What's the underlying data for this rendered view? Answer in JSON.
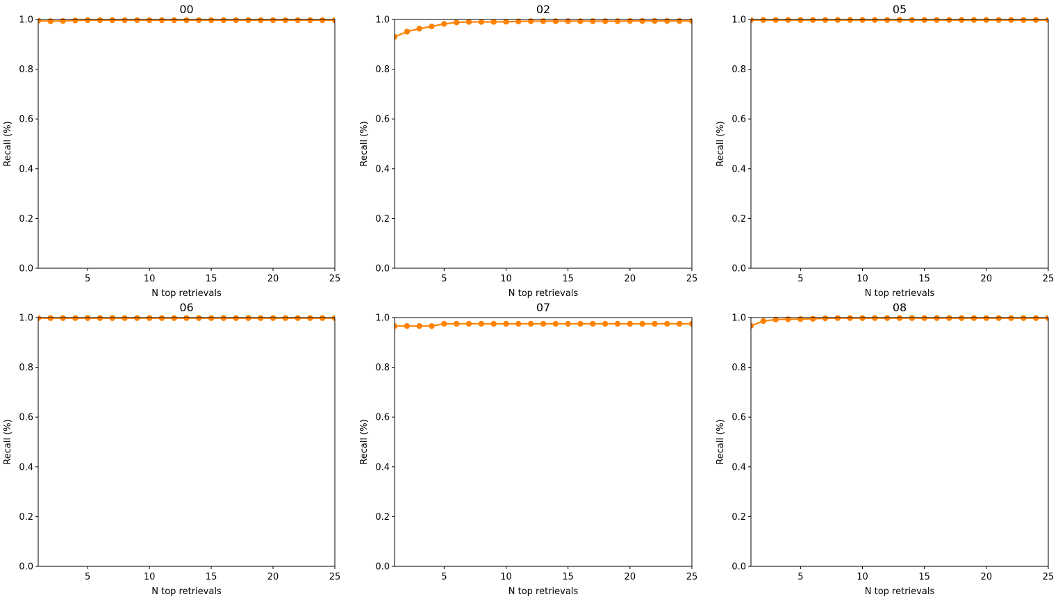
{
  "chart_data": [
    {
      "type": "line",
      "title": "00",
      "xlabel": "N top retrievals",
      "ylabel": "Recall (%)",
      "xlim": [
        1,
        25
      ],
      "ylim": [
        0.0,
        1.0
      ],
      "xticks": [
        5,
        10,
        15,
        20,
        25
      ],
      "yticks": [
        0.0,
        0.2,
        0.4,
        0.6,
        0.8,
        1.0
      ],
      "grid": false,
      "color": "#ff8200",
      "x": [
        1,
        2,
        3,
        4,
        5,
        6,
        7,
        8,
        9,
        10,
        11,
        12,
        13,
        14,
        15,
        16,
        17,
        18,
        19,
        20,
        21,
        22,
        23,
        24,
        25
      ],
      "y": [
        0.995,
        0.993,
        0.994,
        0.996,
        0.997,
        0.997,
        0.997,
        0.997,
        0.997,
        0.997,
        0.997,
        0.997,
        0.997,
        0.997,
        0.997,
        0.997,
        0.997,
        0.997,
        0.997,
        0.997,
        0.997,
        0.997,
        0.997,
        0.997,
        0.997
      ]
    },
    {
      "type": "line",
      "title": "02",
      "xlabel": "N top retrievals",
      "ylabel": "Recall (%)",
      "xlim": [
        1,
        25
      ],
      "ylim": [
        0.0,
        1.0
      ],
      "xticks": [
        5,
        10,
        15,
        20,
        25
      ],
      "yticks": [
        0.0,
        0.2,
        0.4,
        0.6,
        0.8,
        1.0
      ],
      "grid": false,
      "color": "#ff8200",
      "x": [
        1,
        2,
        3,
        4,
        5,
        6,
        7,
        8,
        9,
        10,
        11,
        12,
        13,
        14,
        15,
        16,
        17,
        18,
        19,
        20,
        21,
        22,
        23,
        24,
        25
      ],
      "y": [
        0.93,
        0.951,
        0.963,
        0.972,
        0.982,
        0.988,
        0.99,
        0.99,
        0.99,
        0.991,
        0.992,
        0.993,
        0.993,
        0.993,
        0.993,
        0.993,
        0.993,
        0.993,
        0.993,
        0.994,
        0.994,
        0.994,
        0.994,
        0.994,
        0.994
      ]
    },
    {
      "type": "line",
      "title": "05",
      "xlabel": "N top retrievals",
      "ylabel": "Recall (%)",
      "xlim": [
        1,
        25
      ],
      "ylim": [
        0.0,
        1.0
      ],
      "xticks": [
        5,
        10,
        15,
        20,
        25
      ],
      "yticks": [
        0.0,
        0.2,
        0.4,
        0.6,
        0.8,
        1.0
      ],
      "grid": false,
      "color": "#ff8200",
      "x": [
        1,
        2,
        3,
        4,
        5,
        6,
        7,
        8,
        9,
        10,
        11,
        12,
        13,
        14,
        15,
        16,
        17,
        18,
        19,
        20,
        21,
        22,
        23,
        24,
        25
      ],
      "y": [
        0.998,
        0.998,
        0.998,
        0.998,
        0.998,
        0.998,
        0.998,
        0.998,
        0.998,
        0.998,
        0.998,
        0.998,
        0.998,
        0.998,
        0.998,
        0.998,
        0.998,
        0.998,
        0.998,
        0.998,
        0.998,
        0.998,
        0.998,
        0.998,
        0.998
      ]
    },
    {
      "type": "line",
      "title": "06",
      "xlabel": "N top retrievals",
      "ylabel": "Recall (%)",
      "xlim": [
        1,
        25
      ],
      "ylim": [
        0.0,
        1.0
      ],
      "xticks": [
        5,
        10,
        15,
        20,
        25
      ],
      "yticks": [
        0.0,
        0.2,
        0.4,
        0.6,
        0.8,
        1.0
      ],
      "grid": false,
      "color": "#ff8200",
      "x": [
        1,
        2,
        3,
        4,
        5,
        6,
        7,
        8,
        9,
        10,
        11,
        12,
        13,
        14,
        15,
        16,
        17,
        18,
        19,
        20,
        21,
        22,
        23,
        24,
        25
      ],
      "y": [
        0.998,
        0.998,
        0.998,
        0.998,
        0.998,
        0.998,
        0.998,
        0.998,
        0.998,
        0.998,
        0.998,
        0.998,
        0.998,
        0.998,
        0.998,
        0.998,
        0.998,
        0.998,
        0.998,
        0.998,
        0.998,
        0.998,
        0.998,
        0.998,
        0.998
      ]
    },
    {
      "type": "line",
      "title": "07",
      "xlabel": "N top retrievals",
      "ylabel": "Recall (%)",
      "xlim": [
        1,
        25
      ],
      "ylim": [
        0.0,
        1.0
      ],
      "xticks": [
        5,
        10,
        15,
        20,
        25
      ],
      "yticks": [
        0.0,
        0.2,
        0.4,
        0.6,
        0.8,
        1.0
      ],
      "grid": false,
      "color": "#ff8200",
      "x": [
        1,
        2,
        3,
        4,
        5,
        6,
        7,
        8,
        9,
        10,
        11,
        12,
        13,
        14,
        15,
        16,
        17,
        18,
        19,
        20,
        21,
        22,
        23,
        24,
        25
      ],
      "y": [
        0.966,
        0.966,
        0.966,
        0.966,
        0.975,
        0.975,
        0.975,
        0.975,
        0.975,
        0.975,
        0.975,
        0.975,
        0.975,
        0.975,
        0.975,
        0.975,
        0.975,
        0.975,
        0.975,
        0.975,
        0.975,
        0.975,
        0.975,
        0.975,
        0.975
      ]
    },
    {
      "type": "line",
      "title": "08",
      "xlabel": "N top retrievals",
      "ylabel": "Recall (%)",
      "xlim": [
        1,
        25
      ],
      "ylim": [
        0.0,
        1.0
      ],
      "xticks": [
        5,
        10,
        15,
        20,
        25
      ],
      "yticks": [
        0.0,
        0.2,
        0.4,
        0.6,
        0.8,
        1.0
      ],
      "grid": false,
      "color": "#ff8200",
      "x": [
        1,
        2,
        3,
        4,
        5,
        6,
        7,
        8,
        9,
        10,
        11,
        12,
        13,
        14,
        15,
        16,
        17,
        18,
        19,
        20,
        21,
        22,
        23,
        24,
        25
      ],
      "y": [
        0.967,
        0.986,
        0.992,
        0.993,
        0.994,
        0.995,
        0.997,
        0.998,
        0.998,
        0.998,
        0.998,
        0.998,
        0.998,
        0.998,
        0.998,
        0.998,
        0.998,
        0.998,
        0.998,
        0.998,
        0.998,
        0.998,
        0.998,
        0.998,
        0.998
      ]
    }
  ]
}
